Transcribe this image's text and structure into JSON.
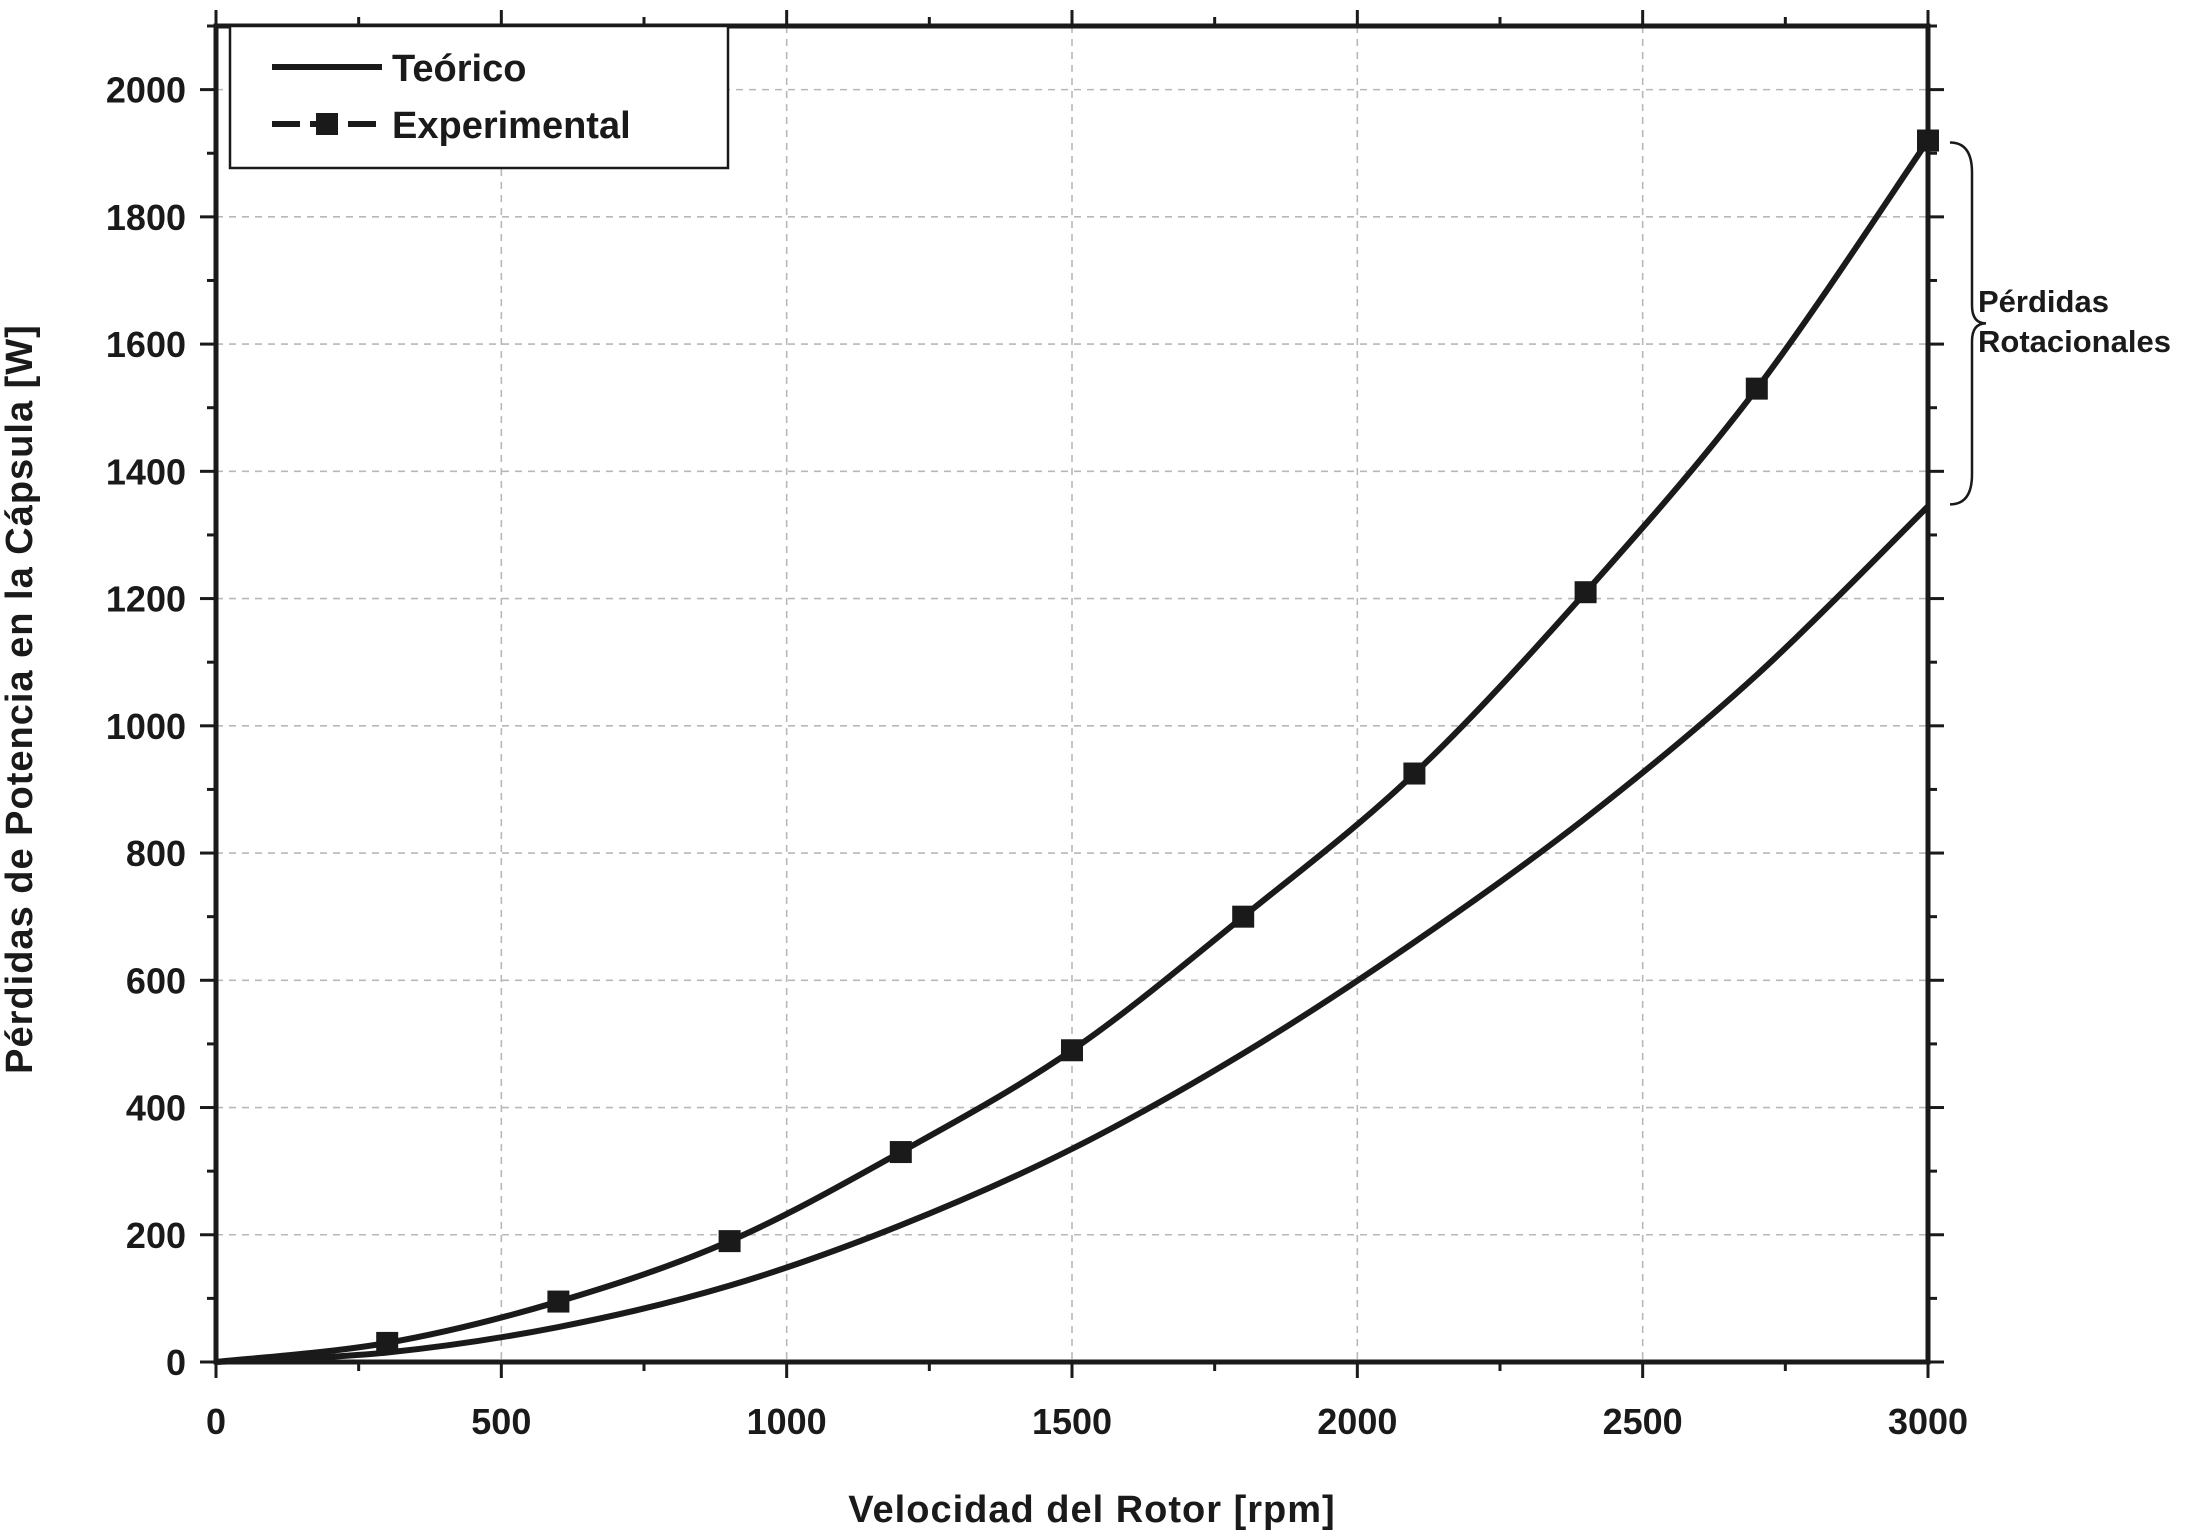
{
  "chart_data": {
    "type": "line",
    "xlabel": "Velocidad del Rotor [rpm]",
    "ylabel": "Pérdidas de Potencia en la Cápsula [W]",
    "xlim": [
      0,
      3000
    ],
    "ylim": [
      0,
      2100
    ],
    "x_ticks": [
      0,
      500,
      1000,
      1500,
      2000,
      2500,
      3000
    ],
    "y_ticks": [
      0,
      200,
      400,
      600,
      800,
      1000,
      1200,
      1400,
      1600,
      1800,
      2000
    ],
    "x_tick_labels": [
      "0",
      "500",
      "1000",
      "1500",
      "2000",
      "2500",
      "3000"
    ],
    "y_tick_labels": [
      "0",
      "200",
      "400",
      "600",
      "800",
      "1000",
      "1200",
      "1400",
      "1600",
      "1800",
      "2000"
    ],
    "grid": true,
    "legend_position": "top-left",
    "series": [
      {
        "name": "Teórico",
        "marker": "none",
        "x": [
          0,
          300,
          600,
          900,
          1200,
          1500,
          1800,
          2100,
          2400,
          2700,
          3000
        ],
        "y": [
          0,
          15,
          55,
          120,
          215,
          335,
          485,
          660,
          855,
          1080,
          1345
        ]
      },
      {
        "name": "Experimental",
        "marker": "square",
        "x": [
          0,
          300,
          600,
          900,
          1200,
          1500,
          1800,
          2100,
          2400,
          2700,
          3000
        ],
        "y": [
          0,
          30,
          95,
          190,
          330,
          490,
          700,
          925,
          1210,
          1530,
          1920
        ]
      }
    ],
    "annotations": [
      {
        "text_lines": [
          "Pérdidas",
          "Rotacionales"
        ],
        "type": "brace",
        "x": 3000,
        "y_range": [
          1345,
          1920
        ]
      }
    ]
  }
}
